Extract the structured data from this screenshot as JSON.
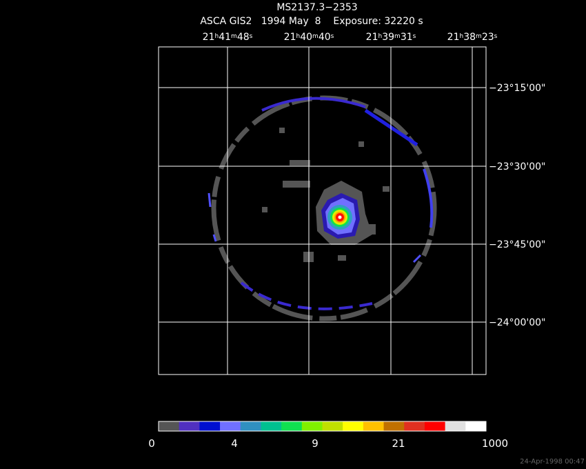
{
  "header": {
    "title": "MS2137.3−2353",
    "subtitle": "ASCA GIS2   1994 May  8    Exposure: 32220 s"
  },
  "ra_labels": [
    [
      "21",
      "h",
      "41",
      "m",
      "48",
      "s"
    ],
    [
      "21",
      "h",
      "40",
      "m",
      "40",
      "s"
    ],
    [
      "21",
      "h",
      "39",
      "m",
      "31",
      "s"
    ],
    [
      "21",
      "h",
      "38",
      "m",
      "23",
      "s"
    ]
  ],
  "dec_labels": [
    "−23°15'00\"",
    "−23°30'00\"",
    "−23°45'00\"",
    "−24°00'00\""
  ],
  "colorbar": {
    "labels": [
      "0",
      "4",
      "9",
      "21",
      "1000"
    ]
  },
  "footer": {
    "timestamp": "24-Apr-1998 00:47"
  }
}
